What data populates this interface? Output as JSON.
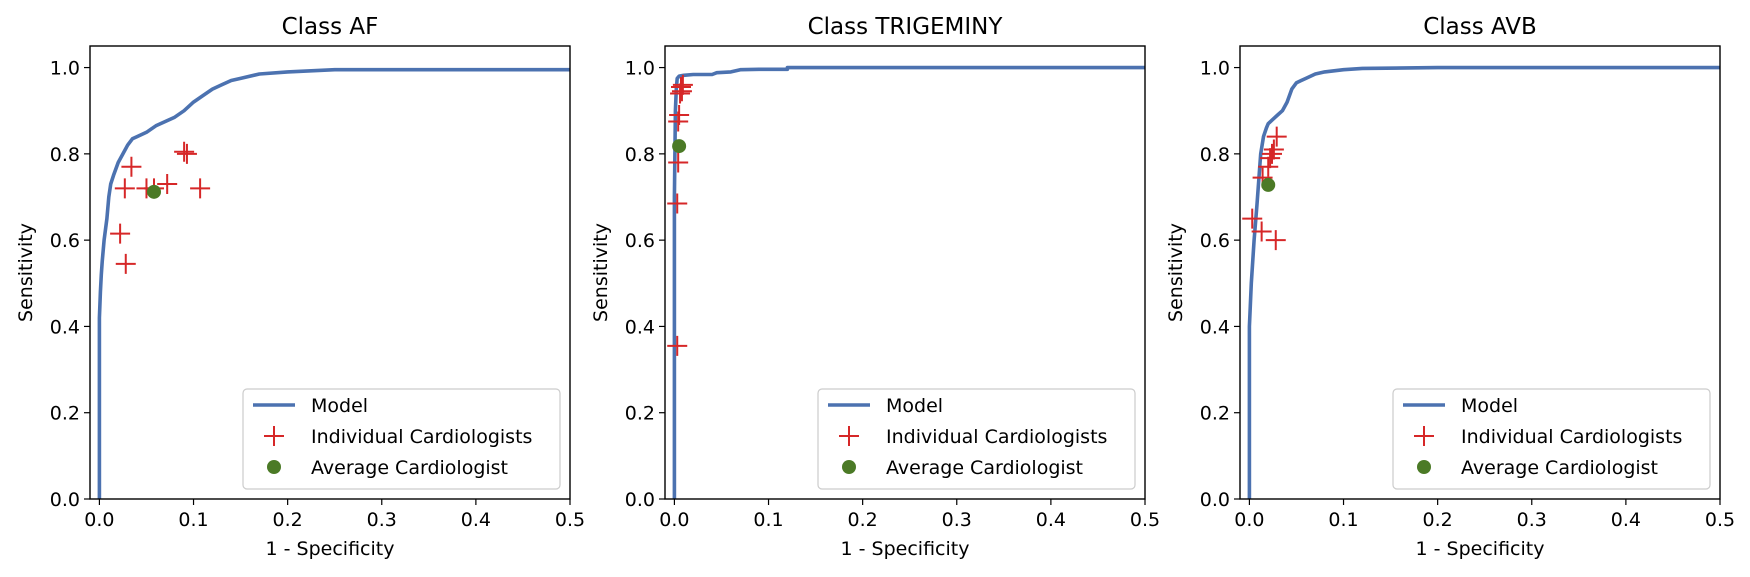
{
  "chart_data": [
    {
      "type": "line",
      "title": "Class AF",
      "xlabel": "1 - Specificity",
      "ylabel": "Sensitivity",
      "xlim": [
        -0.01,
        0.5
      ],
      "ylim": [
        0,
        1.05
      ],
      "xticks": [
        0.0,
        0.1,
        0.2,
        0.3,
        0.4,
        0.5
      ],
      "xtick_labels": [
        "0.0",
        "0.1",
        "0.2",
        "0.3",
        "0.4",
        "0.5"
      ],
      "yticks": [
        0.0,
        0.2,
        0.4,
        0.6,
        0.8,
        1.0
      ],
      "ytick_labels": [
        "0.0",
        "0.2",
        "0.4",
        "0.6",
        "0.8",
        "1.0"
      ],
      "legend_position": "lower-right",
      "series": [
        {
          "name": "Model",
          "kind": "line",
          "color": "#4c72b0",
          "x": [
            0.0,
            0.0,
            0.001,
            0.002,
            0.003,
            0.005,
            0.008,
            0.01,
            0.012,
            0.015,
            0.02,
            0.025,
            0.03,
            0.035,
            0.04,
            0.05,
            0.06,
            0.07,
            0.08,
            0.09,
            0.1,
            0.11,
            0.12,
            0.13,
            0.14,
            0.15,
            0.17,
            0.2,
            0.25,
            0.3,
            0.4,
            0.5
          ],
          "y": [
            0.0,
            0.42,
            0.48,
            0.52,
            0.55,
            0.6,
            0.65,
            0.7,
            0.73,
            0.75,
            0.78,
            0.8,
            0.82,
            0.835,
            0.84,
            0.85,
            0.865,
            0.875,
            0.885,
            0.9,
            0.92,
            0.935,
            0.95,
            0.96,
            0.97,
            0.975,
            0.985,
            0.99,
            0.995,
            0.995,
            0.995,
            0.995
          ]
        },
        {
          "name": "Individual Cardiologists",
          "kind": "scatter",
          "marker": "plus",
          "color": "#d62728",
          "x": [
            0.022,
            0.028,
            0.027,
            0.034,
            0.05,
            0.058,
            0.072,
            0.09,
            0.093,
            0.107
          ],
          "y": [
            0.615,
            0.545,
            0.72,
            0.77,
            0.72,
            0.72,
            0.73,
            0.805,
            0.8,
            0.72
          ]
        },
        {
          "name": "Average Cardiologist",
          "kind": "scatter",
          "marker": "circle",
          "color": "#4b7a26",
          "x": [
            0.058
          ],
          "y": [
            0.712
          ]
        }
      ]
    },
    {
      "type": "line",
      "title": "Class TRIGEMINY",
      "xlabel": "1 - Specificity",
      "ylabel": "Sensitivity",
      "xlim": [
        -0.01,
        0.5
      ],
      "ylim": [
        0,
        1.05
      ],
      "xticks": [
        0.0,
        0.1,
        0.2,
        0.3,
        0.4,
        0.5
      ],
      "xtick_labels": [
        "0.0",
        "0.1",
        "0.2",
        "0.3",
        "0.4",
        "0.5"
      ],
      "yticks": [
        0.0,
        0.2,
        0.4,
        0.6,
        0.8,
        1.0
      ],
      "ytick_labels": [
        "0.0",
        "0.2",
        "0.4",
        "0.6",
        "0.8",
        "1.0"
      ],
      "legend_position": "lower-right",
      "series": [
        {
          "name": "Model",
          "kind": "line",
          "color": "#4c72b0",
          "x": [
            0.0,
            0.0,
            0.001,
            0.002,
            0.003,
            0.005,
            0.01,
            0.02,
            0.03,
            0.04,
            0.045,
            0.06,
            0.07,
            0.09,
            0.12,
            0.12,
            0.2,
            0.3,
            0.5
          ],
          "y": [
            0.0,
            0.7,
            0.9,
            0.95,
            0.975,
            0.98,
            0.982,
            0.984,
            0.984,
            0.984,
            0.988,
            0.99,
            0.995,
            0.996,
            0.996,
            1.0,
            1.0,
            1.0,
            1.0
          ]
        },
        {
          "name": "Individual Cardiologists",
          "kind": "scatter",
          "marker": "plus",
          "color": "#d62728",
          "x": [
            0.003,
            0.003,
            0.004,
            0.004,
            0.005,
            0.006,
            0.007,
            0.008,
            0.009
          ],
          "y": [
            0.355,
            0.685,
            0.78,
            0.875,
            0.89,
            0.94,
            0.955,
            0.945,
            0.96
          ]
        },
        {
          "name": "Average Cardiologist",
          "kind": "scatter",
          "marker": "circle",
          "color": "#4b7a26",
          "x": [
            0.005
          ],
          "y": [
            0.818
          ]
        }
      ]
    },
    {
      "type": "line",
      "title": "Class AVB",
      "xlabel": "1 - Specificity",
      "ylabel": "Sensitivity",
      "xlim": [
        -0.01,
        0.5
      ],
      "ylim": [
        0,
        1.05
      ],
      "xticks": [
        0.0,
        0.1,
        0.2,
        0.3,
        0.4,
        0.5
      ],
      "xtick_labels": [
        "0.0",
        "0.1",
        "0.2",
        "0.3",
        "0.4",
        "0.5"
      ],
      "yticks": [
        0.0,
        0.2,
        0.4,
        0.6,
        0.8,
        1.0
      ],
      "ytick_labels": [
        "0.0",
        "0.2",
        "0.4",
        "0.6",
        "0.8",
        "1.0"
      ],
      "legend_position": "lower-right",
      "series": [
        {
          "name": "Model",
          "kind": "line",
          "color": "#4c72b0",
          "x": [
            0.0,
            0.0,
            0.002,
            0.005,
            0.008,
            0.01,
            0.012,
            0.015,
            0.018,
            0.02,
            0.025,
            0.03,
            0.035,
            0.04,
            0.045,
            0.05,
            0.055,
            0.06,
            0.07,
            0.08,
            0.1,
            0.12,
            0.2,
            0.3,
            0.5
          ],
          "y": [
            0.0,
            0.4,
            0.5,
            0.6,
            0.68,
            0.74,
            0.8,
            0.84,
            0.86,
            0.87,
            0.88,
            0.89,
            0.9,
            0.92,
            0.95,
            0.965,
            0.97,
            0.975,
            0.985,
            0.99,
            0.995,
            0.998,
            1.0,
            1.0,
            1.0
          ]
        },
        {
          "name": "Individual Cardiologists",
          "kind": "scatter",
          "marker": "plus",
          "color": "#d62728",
          "x": [
            0.003,
            0.013,
            0.028,
            0.014,
            0.02,
            0.022,
            0.024,
            0.026,
            0.029
          ],
          "y": [
            0.65,
            0.62,
            0.6,
            0.745,
            0.77,
            0.79,
            0.8,
            0.81,
            0.84
          ]
        },
        {
          "name": "Average Cardiologist",
          "kind": "scatter",
          "marker": "circle",
          "color": "#4b7a26",
          "x": [
            0.02
          ],
          "y": [
            0.728
          ]
        }
      ]
    }
  ]
}
